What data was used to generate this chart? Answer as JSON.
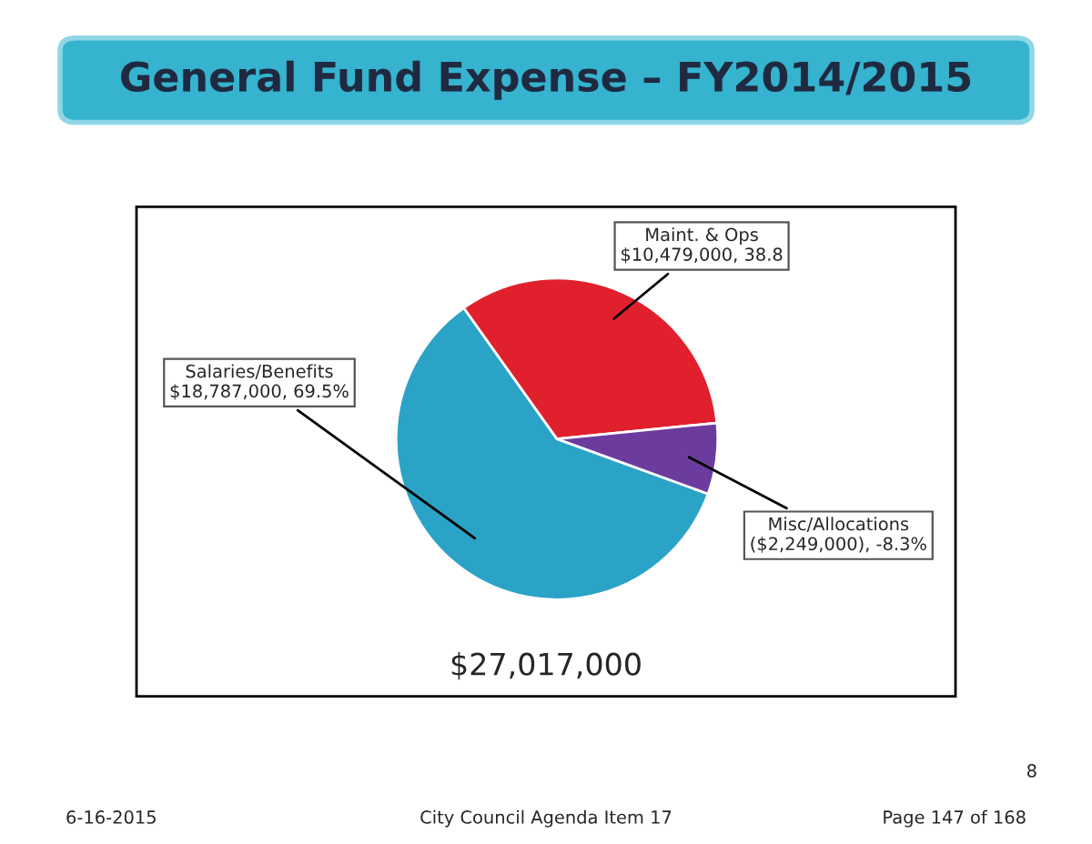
{
  "chart_data": {
    "type": "pie",
    "title": "General Fund Expense – FY2014/2015",
    "categories": [
      "Salaries/Benefits",
      "Maint. & Ops",
      "Misc/Allocations"
    ],
    "values": [
      18787000,
      10479000,
      2249000
    ],
    "value_labels": [
      "$18,787,000, 69.5%",
      "$10,479,000, 38.8",
      "($2,249,000), -8.3%"
    ],
    "colors": [
      "#2ba3c6",
      "#e0202c",
      "#6b3c9e"
    ],
    "annotations": [
      "$27,017,000",
      "6-16-2015",
      "City Council Agenda Item 17",
      "Page 147 of 168",
      "8"
    ]
  }
}
